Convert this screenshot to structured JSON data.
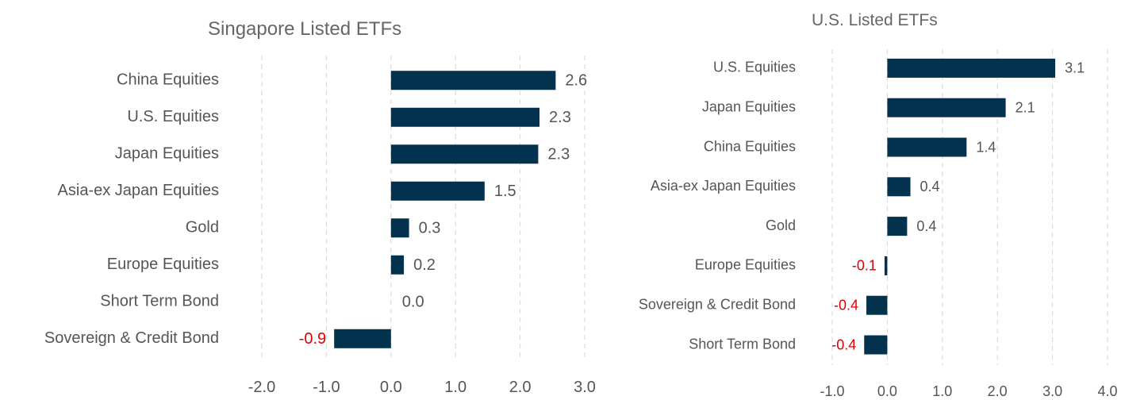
{
  "colors": {
    "bar": "#03324f",
    "positive_label": "#555555",
    "negative_label": "#e00000"
  },
  "chart_data": [
    {
      "type": "bar",
      "orientation": "horizontal",
      "title": "Singapore Listed ETFs",
      "categories": [
        "China Equities",
        "U.S. Equities",
        "Japan Equities",
        "Asia-ex Japan Equities",
        "Gold",
        "Europe Equities",
        "Short Term Bond",
        "Sovereign & Credit Bond"
      ],
      "values": [
        2.55,
        2.3,
        2.28,
        1.45,
        0.28,
        0.2,
        0.0,
        -0.88
      ],
      "labels": [
        "2.6",
        "2.3",
        "2.3",
        "1.5",
        "0.3",
        "0.2",
        "0.0",
        "-0.9"
      ],
      "xlim": [
        -2.0,
        3.0
      ],
      "xticks": [
        "-2.0",
        "-1.0",
        "0.0",
        "1.0",
        "2.0",
        "3.0"
      ],
      "grid": true,
      "legend": "none"
    },
    {
      "type": "bar",
      "orientation": "horizontal",
      "title": "U.S. Listed ETFs",
      "categories": [
        "U.S. Equities",
        "Japan Equities",
        "China Equities",
        "Asia-ex Japan Equities",
        "Gold",
        "Europe Equities",
        "Sovereign & Credit Bond",
        "Short Term Bond"
      ],
      "values": [
        3.05,
        2.15,
        1.44,
        0.42,
        0.36,
        -0.05,
        -0.38,
        -0.42
      ],
      "labels": [
        "3.1",
        "2.1",
        "1.4",
        "0.4",
        "0.4",
        "-0.1",
        "-0.4",
        "-0.4"
      ],
      "xlim": [
        -1.0,
        4.0
      ],
      "xticks": [
        "-1.0",
        "0.0",
        "1.0",
        "2.0",
        "3.0",
        "4.0"
      ],
      "grid": true,
      "legend": "none"
    }
  ]
}
